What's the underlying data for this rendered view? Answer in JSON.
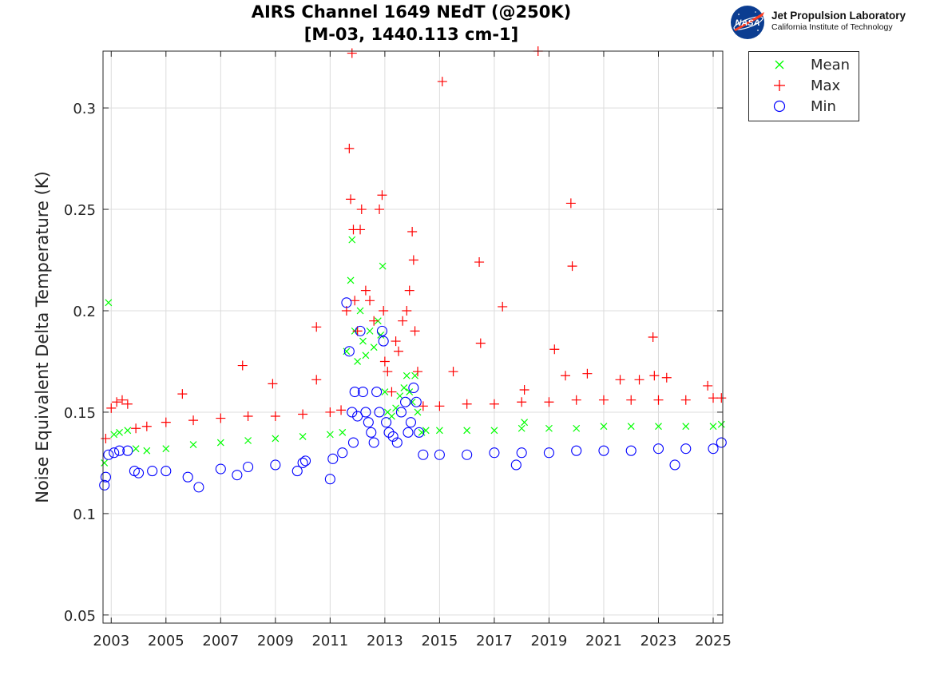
{
  "title": {
    "line1": "AIRS Channel 1649 NEdT (@250K)",
    "line2": "[M-03, 1440.113 cm-1]"
  },
  "logo": {
    "nasa_text": "NASA",
    "name": "Jet Propulsion Laboratory",
    "subtitle": "California Institute of Technology"
  },
  "chart_data": {
    "type": "scatter",
    "title": "AIRS Channel 1649 NEdT (@250K) [M-03, 1440.113 cm-1]",
    "xlabel": "",
    "ylabel": "Noise Equivalent Delta Temperature (K)",
    "xlim": [
      2002.7,
      2025.35
    ],
    "ylim": [
      0.046,
      0.328
    ],
    "xticks": [
      "2003",
      "2005",
      "2007",
      "2009",
      "2011",
      "2013",
      "2015",
      "2017",
      "2019",
      "2021",
      "2023",
      "2025"
    ],
    "xtick_values": [
      2003,
      2005,
      2007,
      2009,
      2011,
      2013,
      2015,
      2017,
      2019,
      2021,
      2023,
      2025
    ],
    "yticks": [
      "0.05",
      "0.1",
      "0.15",
      "0.2",
      "0.25",
      "0.3"
    ],
    "ytick_values": [
      0.05,
      0.1,
      0.15,
      0.2,
      0.25,
      0.3
    ],
    "grid": true,
    "legend_position": "outside-top-right",
    "series": [
      {
        "name": "Mean",
        "marker": "x",
        "color": "#00ff00",
        "x": [
          2002.75,
          2002.9,
          2003.1,
          2003.3,
          2003.6,
          2003.9,
          2004.3,
          2005.0,
          2006.0,
          2007.0,
          2008.0,
          2009.0,
          2010.0,
          2011.0,
          2011.45,
          2011.6,
          2011.75,
          2011.8,
          2011.9,
          2012.0,
          2012.1,
          2012.2,
          2012.3,
          2012.45,
          2012.6,
          2012.75,
          2012.85,
          2012.92,
          2013.0,
          2013.1,
          2013.25,
          2013.4,
          2013.55,
          2013.7,
          2013.8,
          2013.9,
          2014.0,
          2014.1,
          2014.2,
          2014.35,
          2014.5,
          2015.0,
          2016.0,
          2017.0,
          2018.0,
          2018.1,
          2019.0,
          2020.0,
          2021.0,
          2022.0,
          2023.0,
          2024.0,
          2025.0,
          2025.3
        ],
        "y": [
          0.125,
          0.204,
          0.139,
          0.14,
          0.141,
          0.132,
          0.131,
          0.132,
          0.134,
          0.135,
          0.136,
          0.137,
          0.138,
          0.139,
          0.14,
          0.18,
          0.215,
          0.235,
          0.19,
          0.175,
          0.2,
          0.185,
          0.178,
          0.19,
          0.182,
          0.195,
          0.188,
          0.222,
          0.16,
          0.15,
          0.148,
          0.152,
          0.158,
          0.162,
          0.168,
          0.16,
          0.155,
          0.168,
          0.15,
          0.14,
          0.141,
          0.141,
          0.141,
          0.141,
          0.142,
          0.145,
          0.142,
          0.142,
          0.143,
          0.143,
          0.143,
          0.143,
          0.143,
          0.144
        ]
      },
      {
        "name": "Max",
        "marker": "+",
        "color": "#ff0000",
        "x": [
          2002.8,
          2003.0,
          2003.2,
          2003.4,
          2003.6,
          2003.9,
          2004.3,
          2005.0,
          2005.6,
          2006.0,
          2007.0,
          2007.8,
          2008.0,
          2008.9,
          2009.0,
          2010.0,
          2010.5,
          2010.5,
          2011.0,
          2011.4,
          2011.6,
          2011.7,
          2011.75,
          2011.8,
          2011.85,
          2011.9,
          2012.0,
          2012.1,
          2012.15,
          2012.3,
          2012.45,
          2012.6,
          2012.8,
          2012.9,
          2012.95,
          2013.0,
          2013.1,
          2013.25,
          2013.4,
          2013.5,
          2013.65,
          2013.8,
          2013.9,
          2014.0,
          2014.05,
          2014.1,
          2014.2,
          2014.4,
          2015.0,
          2015.1,
          2015.5,
          2016.0,
          2016.45,
          2016.5,
          2017.0,
          2017.3,
          2018.0,
          2018.1,
          2018.6,
          2019.0,
          2019.2,
          2019.6,
          2019.8,
          2019.85,
          2020.0,
          2020.4,
          2021.0,
          2021.6,
          2022.0,
          2022.3,
          2022.8,
          2022.85,
          2023.0,
          2023.3,
          2024.0,
          2024.8,
          2025.0,
          2025.3
        ],
        "y": [
          0.137,
          0.152,
          0.155,
          0.156,
          0.154,
          0.142,
          0.143,
          0.145,
          0.159,
          0.146,
          0.147,
          0.173,
          0.148,
          0.164,
          0.148,
          0.149,
          0.192,
          0.166,
          0.15,
          0.151,
          0.2,
          0.28,
          0.255,
          0.327,
          0.24,
          0.205,
          0.19,
          0.24,
          0.25,
          0.21,
          0.205,
          0.195,
          0.25,
          0.257,
          0.2,
          0.175,
          0.17,
          0.16,
          0.185,
          0.18,
          0.195,
          0.2,
          0.21,
          0.239,
          0.225,
          0.19,
          0.17,
          0.153,
          0.153,
          0.313,
          0.17,
          0.154,
          0.224,
          0.184,
          0.154,
          0.202,
          0.155,
          0.161,
          0.328,
          0.155,
          0.181,
          0.168,
          0.253,
          0.222,
          0.156,
          0.169,
          0.156,
          0.166,
          0.156,
          0.166,
          0.187,
          0.168,
          0.156,
          0.167,
          0.156,
          0.163,
          0.157,
          0.157
        ]
      },
      {
        "name": "Min",
        "marker": "o",
        "color": "#0000ff",
        "x": [
          2002.75,
          2002.8,
          2002.9,
          2003.1,
          2003.3,
          2003.6,
          2003.85,
          2004.0,
          2004.5,
          2005.0,
          2005.8,
          2006.2,
          2007.0,
          2007.6,
          2008.0,
          2009.0,
          2009.8,
          2010.0,
          2010.1,
          2011.0,
          2011.1,
          2011.45,
          2011.6,
          2011.7,
          2011.8,
          2011.85,
          2011.9,
          2012.0,
          2012.1,
          2012.2,
          2012.3,
          2012.4,
          2012.5,
          2012.6,
          2012.7,
          2012.8,
          2012.9,
          2012.95,
          2013.05,
          2013.15,
          2013.3,
          2013.45,
          2013.6,
          2013.75,
          2013.85,
          2013.95,
          2014.05,
          2014.15,
          2014.25,
          2014.4,
          2015.0,
          2016.0,
          2017.0,
          2017.8,
          2018.0,
          2019.0,
          2020.0,
          2021.0,
          2022.0,
          2023.0,
          2023.6,
          2024.0,
          2025.0,
          2025.3
        ],
        "y": [
          0.114,
          0.118,
          0.129,
          0.13,
          0.131,
          0.131,
          0.121,
          0.12,
          0.121,
          0.121,
          0.118,
          0.113,
          0.122,
          0.119,
          0.123,
          0.124,
          0.121,
          0.125,
          0.126,
          0.117,
          0.127,
          0.13,
          0.204,
          0.18,
          0.15,
          0.135,
          0.16,
          0.148,
          0.19,
          0.16,
          0.15,
          0.145,
          0.14,
          0.135,
          0.16,
          0.15,
          0.19,
          0.185,
          0.145,
          0.14,
          0.138,
          0.135,
          0.15,
          0.155,
          0.14,
          0.145,
          0.162,
          0.155,
          0.14,
          0.129,
          0.129,
          0.129,
          0.13,
          0.124,
          0.13,
          0.13,
          0.131,
          0.131,
          0.131,
          0.132,
          0.124,
          0.132,
          0.132,
          0.135
        ]
      }
    ]
  }
}
